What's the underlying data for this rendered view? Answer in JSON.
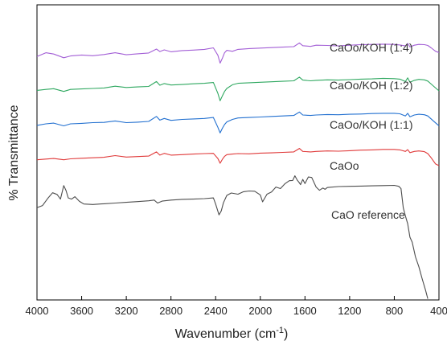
{
  "chart_data": {
    "type": "line",
    "xlabel": "Wavenumber (cm",
    "xlabel_sup": "-1",
    "xlabel_close": ")",
    "ylabel": "% Transmittance",
    "xlim": [
      4000,
      400
    ],
    "x_reversed": true,
    "xticks": [
      4000,
      3600,
      3200,
      2800,
      2400,
      2000,
      1600,
      1200,
      800,
      400
    ],
    "yticks_shown": false,
    "grid": false,
    "legend": "none",
    "series": [
      {
        "name": "CaOo/KOH (1:4)",
        "color": "#a35fd6",
        "points": [
          [
            4000,
            82.0
          ],
          [
            3920,
            83.5
          ],
          [
            3850,
            83.0
          ],
          [
            3760,
            81.5
          ],
          [
            3700,
            82.2
          ],
          [
            3600,
            82.6
          ],
          [
            3500,
            82.3
          ],
          [
            3400,
            82.8
          ],
          [
            3300,
            83.5
          ],
          [
            3200,
            82.7
          ],
          [
            3100,
            83.1
          ],
          [
            3000,
            83.4
          ],
          [
            2930,
            85.0
          ],
          [
            2900,
            84.0
          ],
          [
            2860,
            84.7
          ],
          [
            2800,
            83.9
          ],
          [
            2700,
            84.4
          ],
          [
            2600,
            84.6
          ],
          [
            2500,
            84.9
          ],
          [
            2420,
            85.5
          ],
          [
            2380,
            82.5
          ],
          [
            2360,
            79.3
          ],
          [
            2340,
            81.3
          ],
          [
            2320,
            83.5
          ],
          [
            2300,
            84.5
          ],
          [
            2250,
            84.1
          ],
          [
            2200,
            84.9
          ],
          [
            2100,
            85.2
          ],
          [
            2000,
            85.4
          ],
          [
            1900,
            85.6
          ],
          [
            1800,
            85.8
          ],
          [
            1700,
            86.0
          ],
          [
            1650,
            87.5
          ],
          [
            1620,
            86.4
          ],
          [
            1550,
            86.1
          ],
          [
            1500,
            86.6
          ],
          [
            1400,
            86.5
          ],
          [
            1300,
            86.3
          ],
          [
            1200,
            86.6
          ],
          [
            1100,
            86.8
          ],
          [
            1000,
            86.9
          ],
          [
            900,
            87.0
          ],
          [
            800,
            86.9
          ],
          [
            750,
            86.7
          ],
          [
            700,
            86.3
          ],
          [
            680,
            87.3
          ],
          [
            660,
            85.9
          ],
          [
            620,
            86.6
          ],
          [
            580,
            86.9
          ],
          [
            530,
            86.8
          ],
          [
            500,
            86.5
          ],
          [
            470,
            85.5
          ],
          [
            430,
            84.1
          ],
          [
            400,
            83.6
          ]
        ]
      },
      {
        "name": "CaOo/KOH (1:2)",
        "color": "#2fa860",
        "points": [
          [
            4000,
            68.2
          ],
          [
            3920,
            68.6
          ],
          [
            3850,
            68.9
          ],
          [
            3760,
            67.8
          ],
          [
            3700,
            68.6
          ],
          [
            3600,
            68.8
          ],
          [
            3500,
            69.0
          ],
          [
            3400,
            69.2
          ],
          [
            3300,
            69.9
          ],
          [
            3200,
            69.4
          ],
          [
            3100,
            69.6
          ],
          [
            3000,
            69.8
          ],
          [
            2930,
            71.8
          ],
          [
            2900,
            70.3
          ],
          [
            2860,
            71.0
          ],
          [
            2800,
            70.4
          ],
          [
            2700,
            70.6
          ],
          [
            2600,
            70.9
          ],
          [
            2500,
            71.1
          ],
          [
            2420,
            71.4
          ],
          [
            2380,
            67.0
          ],
          [
            2360,
            64.0
          ],
          [
            2340,
            66.0
          ],
          [
            2320,
            67.8
          ],
          [
            2300,
            69.0
          ],
          [
            2250,
            70.5
          ],
          [
            2200,
            71.1
          ],
          [
            2100,
            71.3
          ],
          [
            2000,
            71.5
          ],
          [
            1900,
            71.7
          ],
          [
            1800,
            71.9
          ],
          [
            1700,
            72.1
          ],
          [
            1650,
            73.6
          ],
          [
            1620,
            72.4
          ],
          [
            1550,
            72.1
          ],
          [
            1500,
            72.3
          ],
          [
            1400,
            72.5
          ],
          [
            1300,
            72.4
          ],
          [
            1200,
            72.6
          ],
          [
            1100,
            72.8
          ],
          [
            1000,
            72.9
          ],
          [
            900,
            73.1
          ],
          [
            800,
            73.0
          ],
          [
            750,
            72.8
          ],
          [
            700,
            71.8
          ],
          [
            680,
            73.3
          ],
          [
            660,
            71.5
          ],
          [
            620,
            72.3
          ],
          [
            580,
            72.7
          ],
          [
            530,
            72.5
          ],
          [
            500,
            72.0
          ],
          [
            470,
            70.8
          ],
          [
            430,
            69.2
          ],
          [
            400,
            68.0
          ]
        ]
      },
      {
        "name": "CaOo/KOH (1:1)",
        "color": "#2270d0",
        "points": [
          [
            4000,
            54.0
          ],
          [
            3920,
            54.6
          ],
          [
            3850,
            54.9
          ],
          [
            3760,
            53.8
          ],
          [
            3700,
            54.6
          ],
          [
            3600,
            54.8
          ],
          [
            3500,
            55.1
          ],
          [
            3400,
            55.2
          ],
          [
            3300,
            55.8
          ],
          [
            3200,
            55.1
          ],
          [
            3100,
            55.3
          ],
          [
            3000,
            55.6
          ],
          [
            2930,
            57.6
          ],
          [
            2900,
            56.1
          ],
          [
            2860,
            56.8
          ],
          [
            2800,
            56.0
          ],
          [
            2700,
            56.4
          ],
          [
            2600,
            56.6
          ],
          [
            2500,
            56.8
          ],
          [
            2420,
            57.2
          ],
          [
            2380,
            53.2
          ],
          [
            2360,
            50.9
          ],
          [
            2340,
            52.8
          ],
          [
            2320,
            54.3
          ],
          [
            2300,
            55.4
          ],
          [
            2250,
            56.4
          ],
          [
            2200,
            57.0
          ],
          [
            2100,
            57.2
          ],
          [
            2000,
            57.4
          ],
          [
            1900,
            57.6
          ],
          [
            1800,
            57.8
          ],
          [
            1700,
            58.0
          ],
          [
            1650,
            59.4
          ],
          [
            1620,
            58.2
          ],
          [
            1550,
            58.0
          ],
          [
            1500,
            58.2
          ],
          [
            1400,
            58.4
          ],
          [
            1300,
            58.3
          ],
          [
            1200,
            58.5
          ],
          [
            1100,
            58.6
          ],
          [
            1000,
            58.8
          ],
          [
            900,
            58.9
          ],
          [
            800,
            58.9
          ],
          [
            750,
            58.7
          ],
          [
            700,
            57.8
          ],
          [
            680,
            58.9
          ],
          [
            660,
            57.5
          ],
          [
            620,
            58.2
          ],
          [
            580,
            58.5
          ],
          [
            530,
            58.3
          ],
          [
            500,
            57.8
          ],
          [
            470,
            56.6
          ],
          [
            430,
            55.0
          ],
          [
            400,
            53.8
          ]
        ]
      },
      {
        "name": "CaOo",
        "color": "#e03a3a",
        "points": [
          [
            4000,
            40.0
          ],
          [
            3920,
            40.3
          ],
          [
            3850,
            40.5
          ],
          [
            3760,
            40.0
          ],
          [
            3700,
            40.4
          ],
          [
            3600,
            40.6
          ],
          [
            3500,
            40.8
          ],
          [
            3400,
            41.0
          ],
          [
            3300,
            41.7
          ],
          [
            3200,
            41.1
          ],
          [
            3100,
            41.3
          ],
          [
            3000,
            41.5
          ],
          [
            2930,
            43.2
          ],
          [
            2900,
            41.9
          ],
          [
            2860,
            42.6
          ],
          [
            2800,
            41.9
          ],
          [
            2700,
            42.1
          ],
          [
            2600,
            42.3
          ],
          [
            2500,
            42.5
          ],
          [
            2420,
            42.6
          ],
          [
            2380,
            40.5
          ],
          [
            2360,
            38.6
          ],
          [
            2340,
            40.2
          ],
          [
            2320,
            41.4
          ],
          [
            2300,
            42.1
          ],
          [
            2250,
            42.3
          ],
          [
            2200,
            42.5
          ],
          [
            2100,
            42.4
          ],
          [
            2000,
            42.7
          ],
          [
            1900,
            42.8
          ],
          [
            1800,
            43.0
          ],
          [
            1700,
            43.2
          ],
          [
            1650,
            44.6
          ],
          [
            1620,
            43.4
          ],
          [
            1550,
            43.2
          ],
          [
            1500,
            43.4
          ],
          [
            1400,
            43.6
          ],
          [
            1300,
            43.5
          ],
          [
            1200,
            43.7
          ],
          [
            1100,
            43.9
          ],
          [
            1000,
            44.0
          ],
          [
            900,
            44.2
          ],
          [
            800,
            44.2
          ],
          [
            750,
            44.0
          ],
          [
            700,
            43.4
          ],
          [
            680,
            44.1
          ],
          [
            660,
            42.9
          ],
          [
            620,
            43.4
          ],
          [
            580,
            43.6
          ],
          [
            530,
            43.3
          ],
          [
            500,
            42.5
          ],
          [
            470,
            40.8
          ],
          [
            430,
            38.3
          ],
          [
            400,
            37.6
          ]
        ]
      },
      {
        "name": "CaO reference",
        "color": "#4d4d4d",
        "points": [
          [
            4000,
            20.5
          ],
          [
            3950,
            21.4
          ],
          [
            3900,
            24.5
          ],
          [
            3860,
            26.6
          ],
          [
            3820,
            25.9
          ],
          [
            3790,
            24.0
          ],
          [
            3760,
            29.5
          ],
          [
            3740,
            27.5
          ],
          [
            3720,
            24.5
          ],
          [
            3690,
            24.0
          ],
          [
            3660,
            25.0
          ],
          [
            3620,
            23.1
          ],
          [
            3580,
            22.0
          ],
          [
            3500,
            21.8
          ],
          [
            3400,
            22.1
          ],
          [
            3300,
            22.4
          ],
          [
            3200,
            22.7
          ],
          [
            3100,
            23.0
          ],
          [
            3000,
            23.3
          ],
          [
            2950,
            23.6
          ],
          [
            2920,
            22.4
          ],
          [
            2880,
            23.2
          ],
          [
            2800,
            23.6
          ],
          [
            2700,
            23.9
          ],
          [
            2600,
            24.0
          ],
          [
            2500,
            24.2
          ],
          [
            2420,
            24.5
          ],
          [
            2400,
            22.0
          ],
          [
            2370,
            17.6
          ],
          [
            2350,
            19.2
          ],
          [
            2330,
            22.5
          ],
          [
            2300,
            25.5
          ],
          [
            2260,
            26.5
          ],
          [
            2200,
            26.0
          ],
          [
            2150,
            27.0
          ],
          [
            2100,
            27.3
          ],
          [
            2050,
            27.2
          ],
          [
            2000,
            25.7
          ],
          [
            1980,
            22.9
          ],
          [
            1960,
            24.4
          ],
          [
            1940,
            26.0
          ],
          [
            1900,
            26.9
          ],
          [
            1860,
            28.9
          ],
          [
            1820,
            28.3
          ],
          [
            1780,
            30.2
          ],
          [
            1740,
            31.5
          ],
          [
            1710,
            31.6
          ],
          [
            1690,
            33.5
          ],
          [
            1670,
            31.8
          ],
          [
            1650,
            30.6
          ],
          [
            1640,
            29.9
          ],
          [
            1620,
            32.0
          ],
          [
            1600,
            30.3
          ],
          [
            1570,
            33.0
          ],
          [
            1540,
            32.8
          ],
          [
            1500,
            28.9
          ],
          [
            1470,
            27.6
          ],
          [
            1440,
            28.5
          ],
          [
            1420,
            28.0
          ],
          [
            1400,
            28.7
          ],
          [
            1380,
            28.8
          ],
          [
            1300,
            29.1
          ],
          [
            1200,
            29.2
          ],
          [
            1100,
            29.3
          ],
          [
            1000,
            29.4
          ],
          [
            900,
            29.5
          ],
          [
            800,
            29.6
          ],
          [
            760,
            29.2
          ],
          [
            740,
            28.3
          ],
          [
            720,
            20.5
          ],
          [
            700,
            17.1
          ],
          [
            680,
            14.0
          ],
          [
            660,
            8.5
          ],
          [
            640,
            6.5
          ],
          [
            610,
            0.5
          ],
          [
            580,
            -3.5
          ],
          [
            550,
            -8.5
          ],
          [
            520,
            -13.0
          ],
          [
            500,
            -16.5
          ]
        ]
      }
    ]
  }
}
